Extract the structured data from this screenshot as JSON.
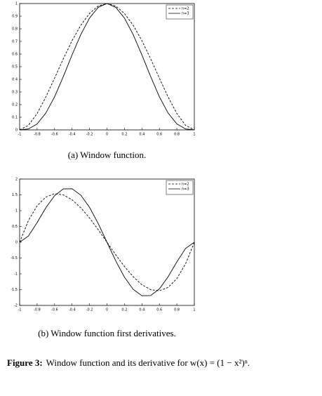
{
  "chart_data": [
    {
      "type": "line",
      "caption": "(a) Window function.",
      "legend": "upper right",
      "x": [
        -1,
        -0.9,
        -0.8,
        -0.7,
        -0.6,
        -0.5,
        -0.4,
        -0.3,
        -0.2,
        -0.1,
        0,
        0.1,
        0.2,
        0.3,
        0.4,
        0.5,
        0.6,
        0.7,
        0.8,
        0.9,
        1
      ],
      "series": [
        {
          "name": "n=2",
          "color": "#000000",
          "linestyle": "dashed",
          "values": [
            0,
            0.0361,
            0.1296,
            0.2601,
            0.4096,
            0.5625,
            0.7056,
            0.8281,
            0.9216,
            0.9801,
            1,
            0.9801,
            0.9216,
            0.8281,
            0.7056,
            0.5625,
            0.4096,
            0.2601,
            0.1296,
            0.0361,
            0
          ]
        },
        {
          "name": "n=3",
          "color": "#000000",
          "linestyle": "solid",
          "values": [
            0,
            0.007,
            0.047,
            0.133,
            0.262,
            0.422,
            0.593,
            0.754,
            0.885,
            0.97,
            1,
            0.97,
            0.885,
            0.754,
            0.593,
            0.422,
            0.262,
            0.133,
            0.047,
            0.007,
            0
          ]
        }
      ],
      "xlim": [
        -1,
        1
      ],
      "xticks": [
        -1,
        -0.8,
        -0.6,
        -0.4,
        -0.2,
        0,
        0.2,
        0.4,
        0.6,
        0.8,
        1
      ],
      "ylim": [
        0,
        1
      ],
      "yticks": [
        0,
        0.1,
        0.2,
        0.3,
        0.4,
        0.5,
        0.6,
        0.7,
        0.8,
        0.9,
        1
      ]
    },
    {
      "type": "line",
      "caption": "(b) Window function first derivatives.",
      "legend": "upper right",
      "x": [
        -1,
        -0.9,
        -0.8,
        -0.7,
        -0.6,
        -0.5,
        -0.4,
        -0.3,
        -0.2,
        -0.1,
        0,
        0.1,
        0.2,
        0.3,
        0.4,
        0.5,
        0.6,
        0.7,
        0.8,
        0.9,
        1
      ],
      "series": [
        {
          "name": "n=2",
          "color": "#000000",
          "linestyle": "dashed",
          "values": [
            0,
            0.684,
            1.152,
            1.428,
            1.536,
            1.5,
            1.344,
            1.092,
            0.768,
            0.396,
            0,
            -0.396,
            -0.768,
            -1.092,
            -1.344,
            -1.5,
            -1.536,
            -1.428,
            -1.152,
            -0.684,
            0
          ]
        },
        {
          "name": "n=3",
          "color": "#000000",
          "linestyle": "solid",
          "values": [
            0,
            0.195,
            0.622,
            1.092,
            1.475,
            1.688,
            1.693,
            1.491,
            1.106,
            0.588,
            0,
            -0.588,
            -1.106,
            -1.491,
            -1.693,
            -1.688,
            -1.475,
            -1.092,
            -0.622,
            -0.195,
            0
          ]
        }
      ],
      "xlim": [
        -1,
        1
      ],
      "xticks": [
        -1,
        -0.8,
        -0.6,
        -0.4,
        -0.2,
        0,
        0.2,
        0.4,
        0.6,
        0.8,
        1
      ],
      "ylim": [
        -2,
        2
      ],
      "yticks": [
        -2,
        -1.5,
        -1,
        -0.5,
        0,
        0.5,
        1,
        1.5,
        2
      ]
    }
  ],
  "figure_caption": {
    "label": "Figure 3:",
    "text": "Window function and its derivative for w(x) = (1 − x²)ⁿ."
  }
}
